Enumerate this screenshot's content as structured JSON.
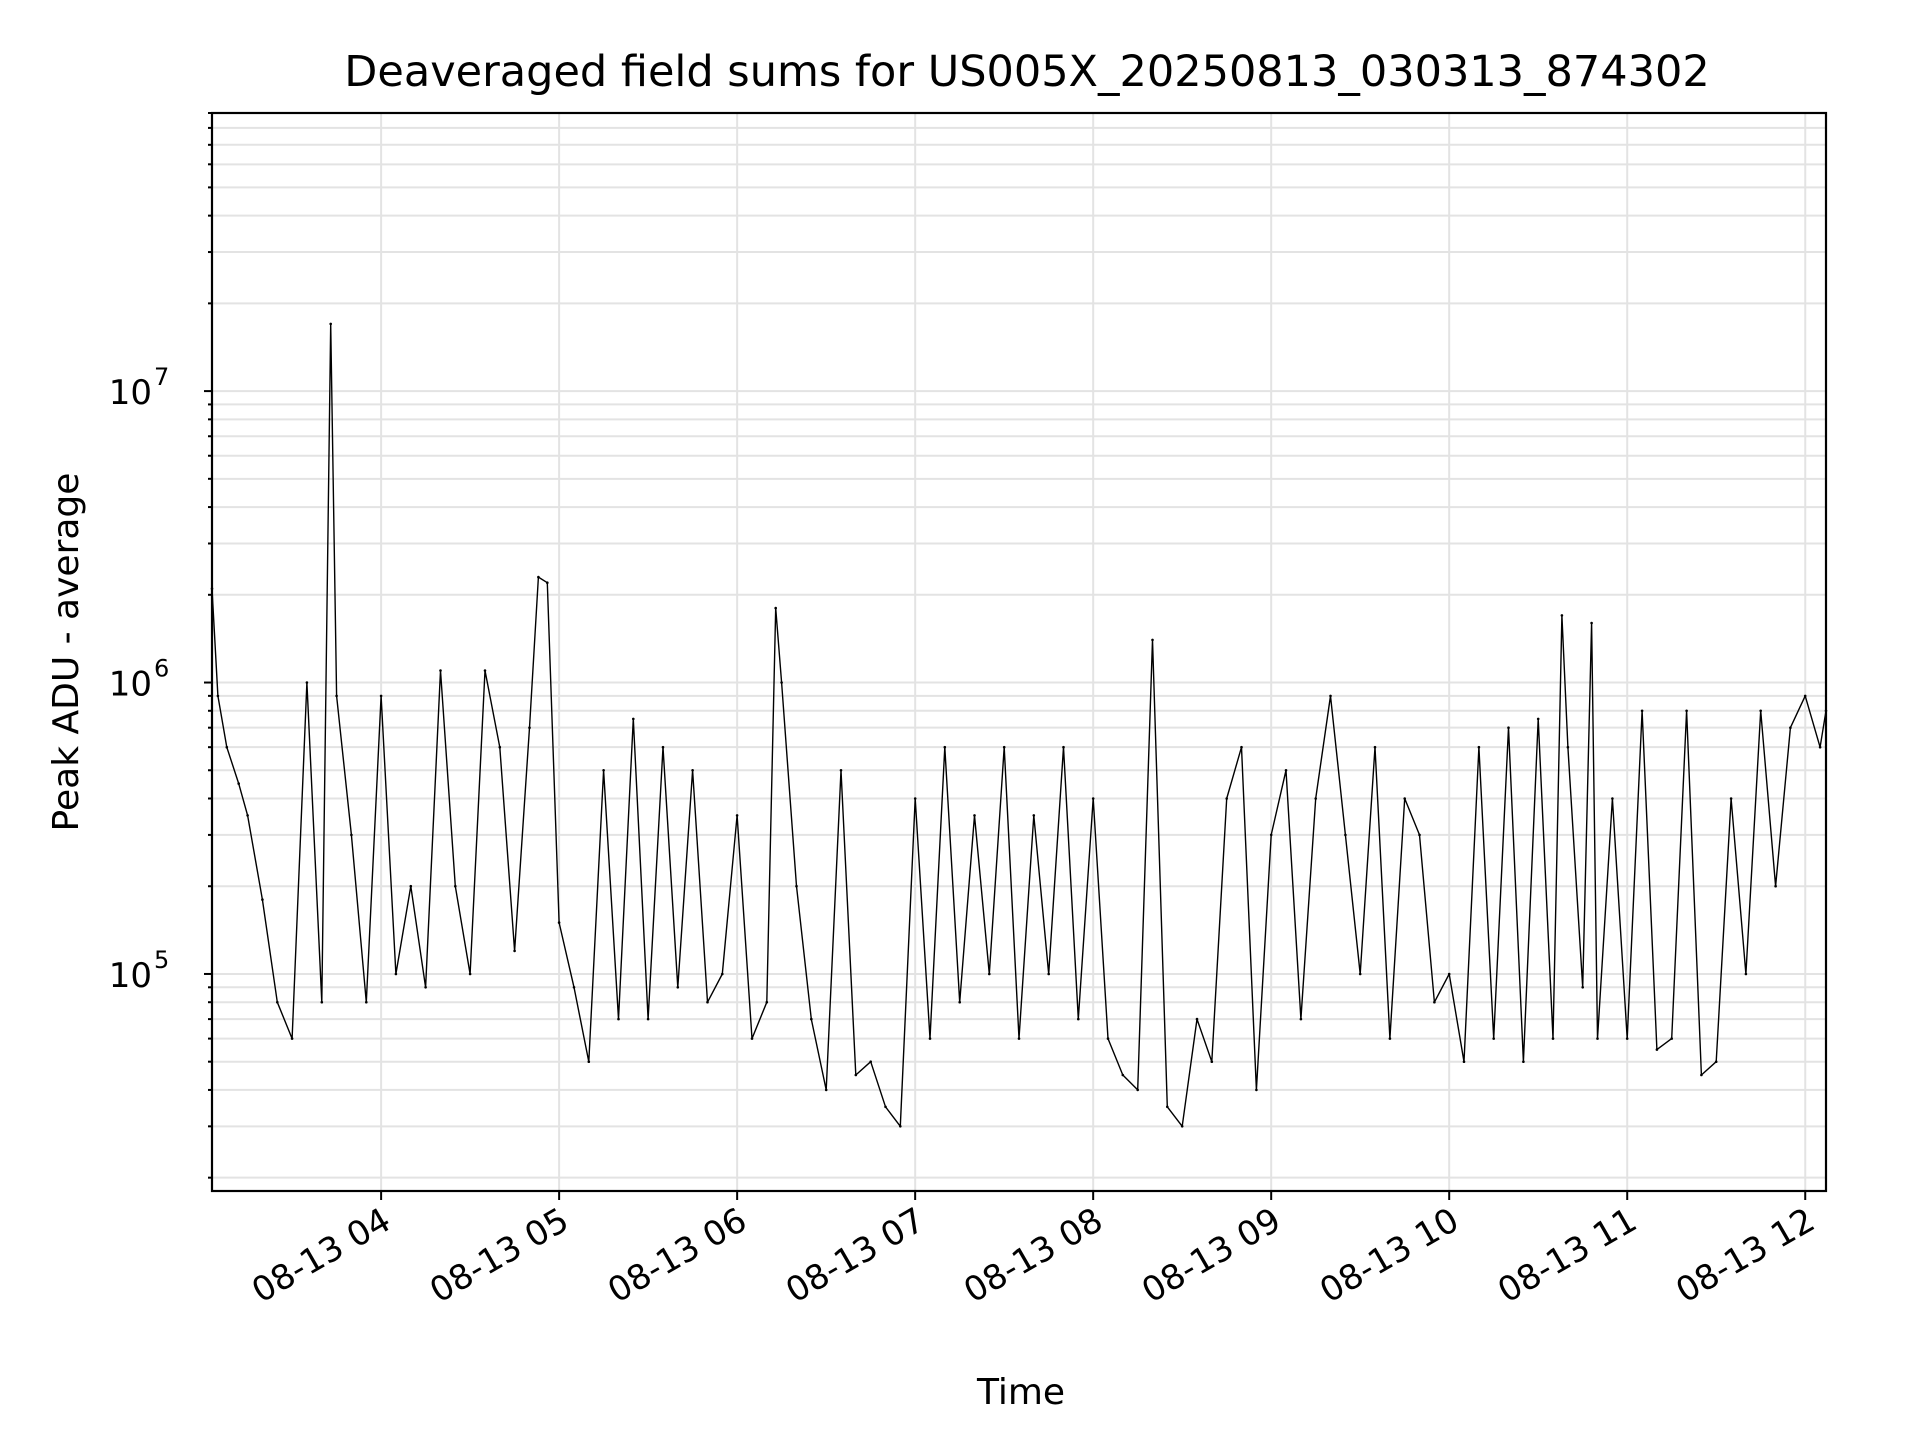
{
  "chart_data": {
    "type": "line",
    "title": "Deaveraged field sums for US005X_20250813_030313_874302",
    "xlabel": "Time",
    "ylabel": "Peak ADU - average",
    "yscale": "log",
    "xlim": [
      "08-13 03:03",
      "08-13 12:07"
    ],
    "ylim": [
      18000,
      90000000
    ],
    "grid": true,
    "legend": "none",
    "line_color": "#000000",
    "x_ticks": [
      {
        "value": "08-13 04",
        "label": "08-13 04"
      },
      {
        "value": "08-13 05",
        "label": "08-13 05"
      },
      {
        "value": "08-13 06",
        "label": "08-13 06"
      },
      {
        "value": "08-13 07",
        "label": "08-13 07"
      },
      {
        "value": "08-13 08",
        "label": "08-13 08"
      },
      {
        "value": "08-13 09",
        "label": "08-13 09"
      },
      {
        "value": "08-13 10",
        "label": "08-13 10"
      },
      {
        "value": "08-13 11",
        "label": "08-13 11"
      },
      {
        "value": "08-13 12",
        "label": "08-13 12"
      }
    ],
    "y_ticks": [
      {
        "value": 100000,
        "base": "10",
        "exp": "5"
      },
      {
        "value": 1000000,
        "base": "10",
        "exp": "6"
      },
      {
        "value": 10000000,
        "base": "10",
        "exp": "7"
      }
    ],
    "series": [
      {
        "x": [
          "08-13 03:03",
          "08-13 03:05",
          "08-13 03:08",
          "08-13 03:12",
          "08-13 03:15",
          "08-13 03:20",
          "08-13 03:25",
          "08-13 03:30",
          "08-13 03:35",
          "08-13 03:40",
          "08-13 03:43",
          "08-13 03:45",
          "08-13 03:50",
          "08-13 03:55",
          "08-13 04:00",
          "08-13 04:05",
          "08-13 04:10",
          "08-13 04:15",
          "08-13 04:20",
          "08-13 04:25",
          "08-13 04:30",
          "08-13 04:35",
          "08-13 04:40",
          "08-13 04:45",
          "08-13 04:50",
          "08-13 04:53",
          "08-13 04:56",
          "08-13 05:00",
          "08-13 05:05",
          "08-13 05:10",
          "08-13 05:15",
          "08-13 05:20",
          "08-13 05:25",
          "08-13 05:30",
          "08-13 05:35",
          "08-13 05:40",
          "08-13 05:45",
          "08-13 05:50",
          "08-13 05:55",
          "08-13 06:00",
          "08-13 06:05",
          "08-13 06:10",
          "08-13 06:13",
          "08-13 06:15",
          "08-13 06:20",
          "08-13 06:25",
          "08-13 06:30",
          "08-13 06:35",
          "08-13 06:40",
          "08-13 06:45",
          "08-13 06:50",
          "08-13 06:55",
          "08-13 07:00",
          "08-13 07:05",
          "08-13 07:10",
          "08-13 07:15",
          "08-13 07:20",
          "08-13 07:25",
          "08-13 07:30",
          "08-13 07:35",
          "08-13 07:40",
          "08-13 07:45",
          "08-13 07:50",
          "08-13 07:55",
          "08-13 08:00",
          "08-13 08:05",
          "08-13 08:10",
          "08-13 08:15",
          "08-13 08:20",
          "08-13 08:25",
          "08-13 08:30",
          "08-13 08:35",
          "08-13 08:40",
          "08-13 08:45",
          "08-13 08:50",
          "08-13 08:55",
          "08-13 09:00",
          "08-13 09:05",
          "08-13 09:10",
          "08-13 09:15",
          "08-13 09:20",
          "08-13 09:25",
          "08-13 09:30",
          "08-13 09:35",
          "08-13 09:40",
          "08-13 09:45",
          "08-13 09:50",
          "08-13 09:55",
          "08-13 10:00",
          "08-13 10:05",
          "08-13 10:10",
          "08-13 10:15",
          "08-13 10:20",
          "08-13 10:25",
          "08-13 10:30",
          "08-13 10:35",
          "08-13 10:38",
          "08-13 10:40",
          "08-13 10:45",
          "08-13 10:48",
          "08-13 10:50",
          "08-13 10:55",
          "08-13 11:00",
          "08-13 11:05",
          "08-13 11:10",
          "08-13 11:15",
          "08-13 11:20",
          "08-13 11:25",
          "08-13 11:30",
          "08-13 11:35",
          "08-13 11:40",
          "08-13 11:45",
          "08-13 11:50",
          "08-13 11:55",
          "08-13 12:00",
          "08-13 12:05",
          "08-13 12:07"
        ],
        "y": [
          2100000,
          900000,
          600000,
          450000,
          350000,
          180000,
          80000,
          60000,
          1000000,
          80000,
          17000000,
          900000,
          300000,
          80000,
          900000,
          100000,
          200000,
          90000,
          1100000,
          200000,
          100000,
          1100000,
          600000,
          120000,
          700000,
          2300000,
          2200000,
          150000,
          90000,
          50000,
          500000,
          70000,
          750000,
          70000,
          600000,
          90000,
          500000,
          80000,
          100000,
          350000,
          60000,
          80000,
          1800000,
          1000000,
          200000,
          70000,
          40000,
          500000,
          45000,
          50000,
          35000,
          30000,
          400000,
          60000,
          600000,
          80000,
          350000,
          100000,
          600000,
          60000,
          350000,
          100000,
          600000,
          70000,
          400000,
          60000,
          45000,
          40000,
          1400000,
          35000,
          30000,
          70000,
          50000,
          400000,
          600000,
          40000,
          300000,
          500000,
          70000,
          400000,
          900000,
          300000,
          100000,
          600000,
          60000,
          400000,
          300000,
          80000,
          100000,
          50000,
          600000,
          60000,
          700000,
          50000,
          750000,
          60000,
          1700000,
          600000,
          90000,
          1600000,
          60000,
          400000,
          60000,
          800000,
          55000,
          60000,
          800000,
          45000,
          50000,
          400000,
          100000,
          800000,
          200000,
          700000,
          900000,
          600000,
          800000
        ]
      }
    ]
  }
}
